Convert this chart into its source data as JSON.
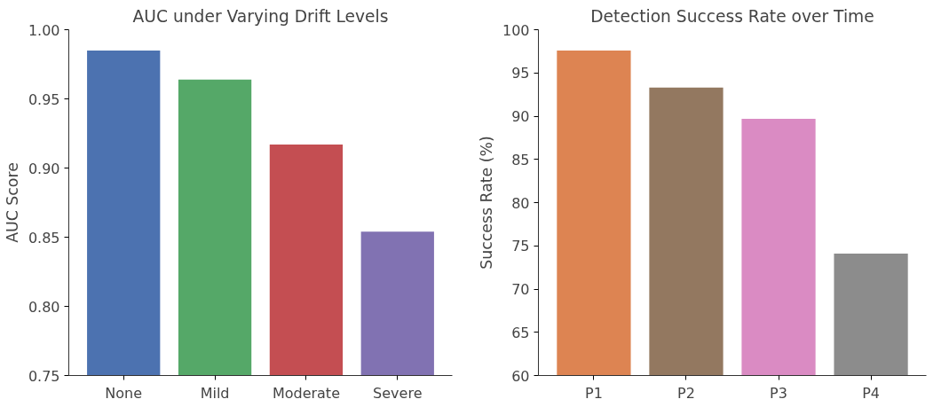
{
  "chart_data": [
    {
      "type": "bar",
      "title": "AUC under Varying Drift Levels",
      "ylabel": "AUC Score",
      "categories": [
        "None",
        "Mild",
        "Moderate",
        "Severe"
      ],
      "values": [
        0.985,
        0.964,
        0.917,
        0.854
      ],
      "colors": [
        "#4c72b0",
        "#55a868",
        "#c44e52",
        "#8172b2"
      ],
      "ylim": [
        0.75,
        1.0
      ],
      "yticks": [
        {
          "value": 0.75,
          "label": "0.75"
        },
        {
          "value": 0.8,
          "label": "0.80"
        },
        {
          "value": 0.85,
          "label": "0.85"
        },
        {
          "value": 0.9,
          "label": "0.90"
        },
        {
          "value": 0.95,
          "label": "0.95"
        },
        {
          "value": 1.0,
          "label": "1.00"
        }
      ],
      "grid": false
    },
    {
      "type": "bar",
      "title": "Detection Success Rate over Time",
      "ylabel": "Success Rate (%)",
      "categories": [
        "P1",
        "P2",
        "P3",
        "P4"
      ],
      "values": [
        97.6,
        93.3,
        89.7,
        74.1
      ],
      "colors": [
        "#dd8452",
        "#937860",
        "#da8bc3",
        "#8c8c8c"
      ],
      "ylim": [
        60,
        100
      ],
      "yticks": [
        60,
        65,
        70,
        75,
        80,
        85,
        90,
        95,
        100
      ],
      "grid": false
    }
  ]
}
